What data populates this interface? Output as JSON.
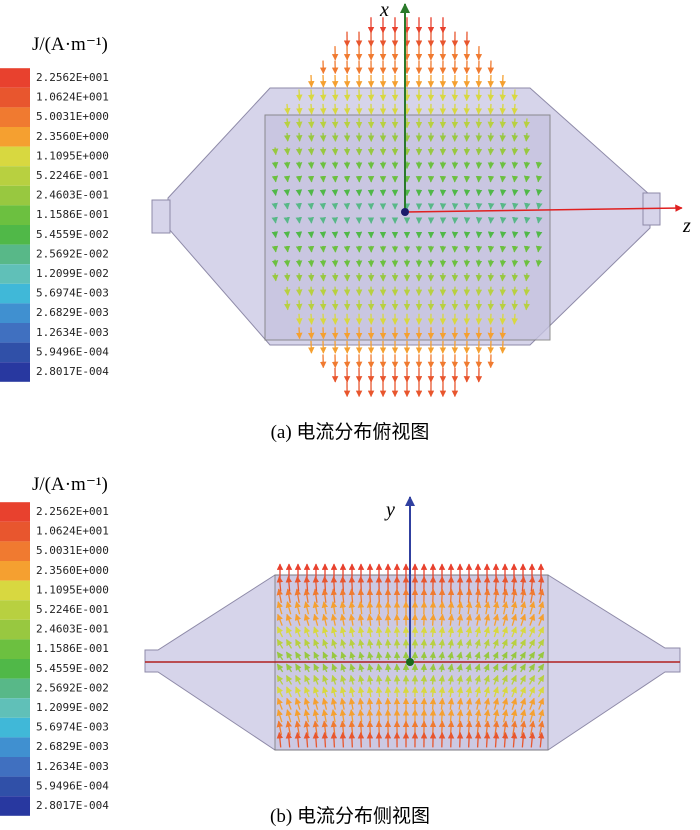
{
  "panels": [
    {
      "legend_title": "J/(A·m⁻¹)",
      "legend_labels": [
        "2.2562E+001",
        "1.0624E+001",
        "5.0031E+000",
        "2.3560E+000",
        "1.1095E+000",
        "5.2246E-001",
        "2.4603E-001",
        "1.1586E-001",
        "5.4559E-002",
        "2.5692E-002",
        "1.2099E-002",
        "5.6974E-003",
        "2.6829E-003",
        "1.2634E-003",
        "5.9496E-004",
        "2.8017E-004"
      ],
      "legend_colors": [
        "#e8412e",
        "#e8562e",
        "#f07a30",
        "#f5a030",
        "#d8d840",
        "#b8d040",
        "#98c840",
        "#6cc040",
        "#50b848",
        "#58b888",
        "#60c0b8",
        "#40b8d8",
        "#4090d0",
        "#4070c0",
        "#3050a8",
        "#2838a0"
      ],
      "axes": [
        "x",
        "z"
      ],
      "caption": "(a) 电流分布俯视图"
    },
    {
      "legend_title": "J/(A·m⁻¹)",
      "legend_labels": [
        "2.2562E+001",
        "1.0624E+001",
        "5.0031E+000",
        "2.3560E+000",
        "1.1095E+000",
        "5.2246E-001",
        "2.4603E-001",
        "1.1586E-001",
        "5.4559E-002",
        "2.5692E-002",
        "1.2099E-002",
        "5.6974E-003",
        "2.6829E-003",
        "1.2634E-003",
        "5.9496E-004",
        "2.8017E-004"
      ],
      "legend_colors": [
        "#e8412e",
        "#e8562e",
        "#f07a30",
        "#f5a030",
        "#d8d840",
        "#b8d040",
        "#98c840",
        "#6cc040",
        "#50b848",
        "#58b888",
        "#60c0b8",
        "#40b8d8",
        "#4090d0",
        "#4070c0",
        "#3050a8",
        "#2838a0"
      ],
      "axes": [
        "y"
      ],
      "caption": "(b) 电流分布侧视图"
    }
  ]
}
